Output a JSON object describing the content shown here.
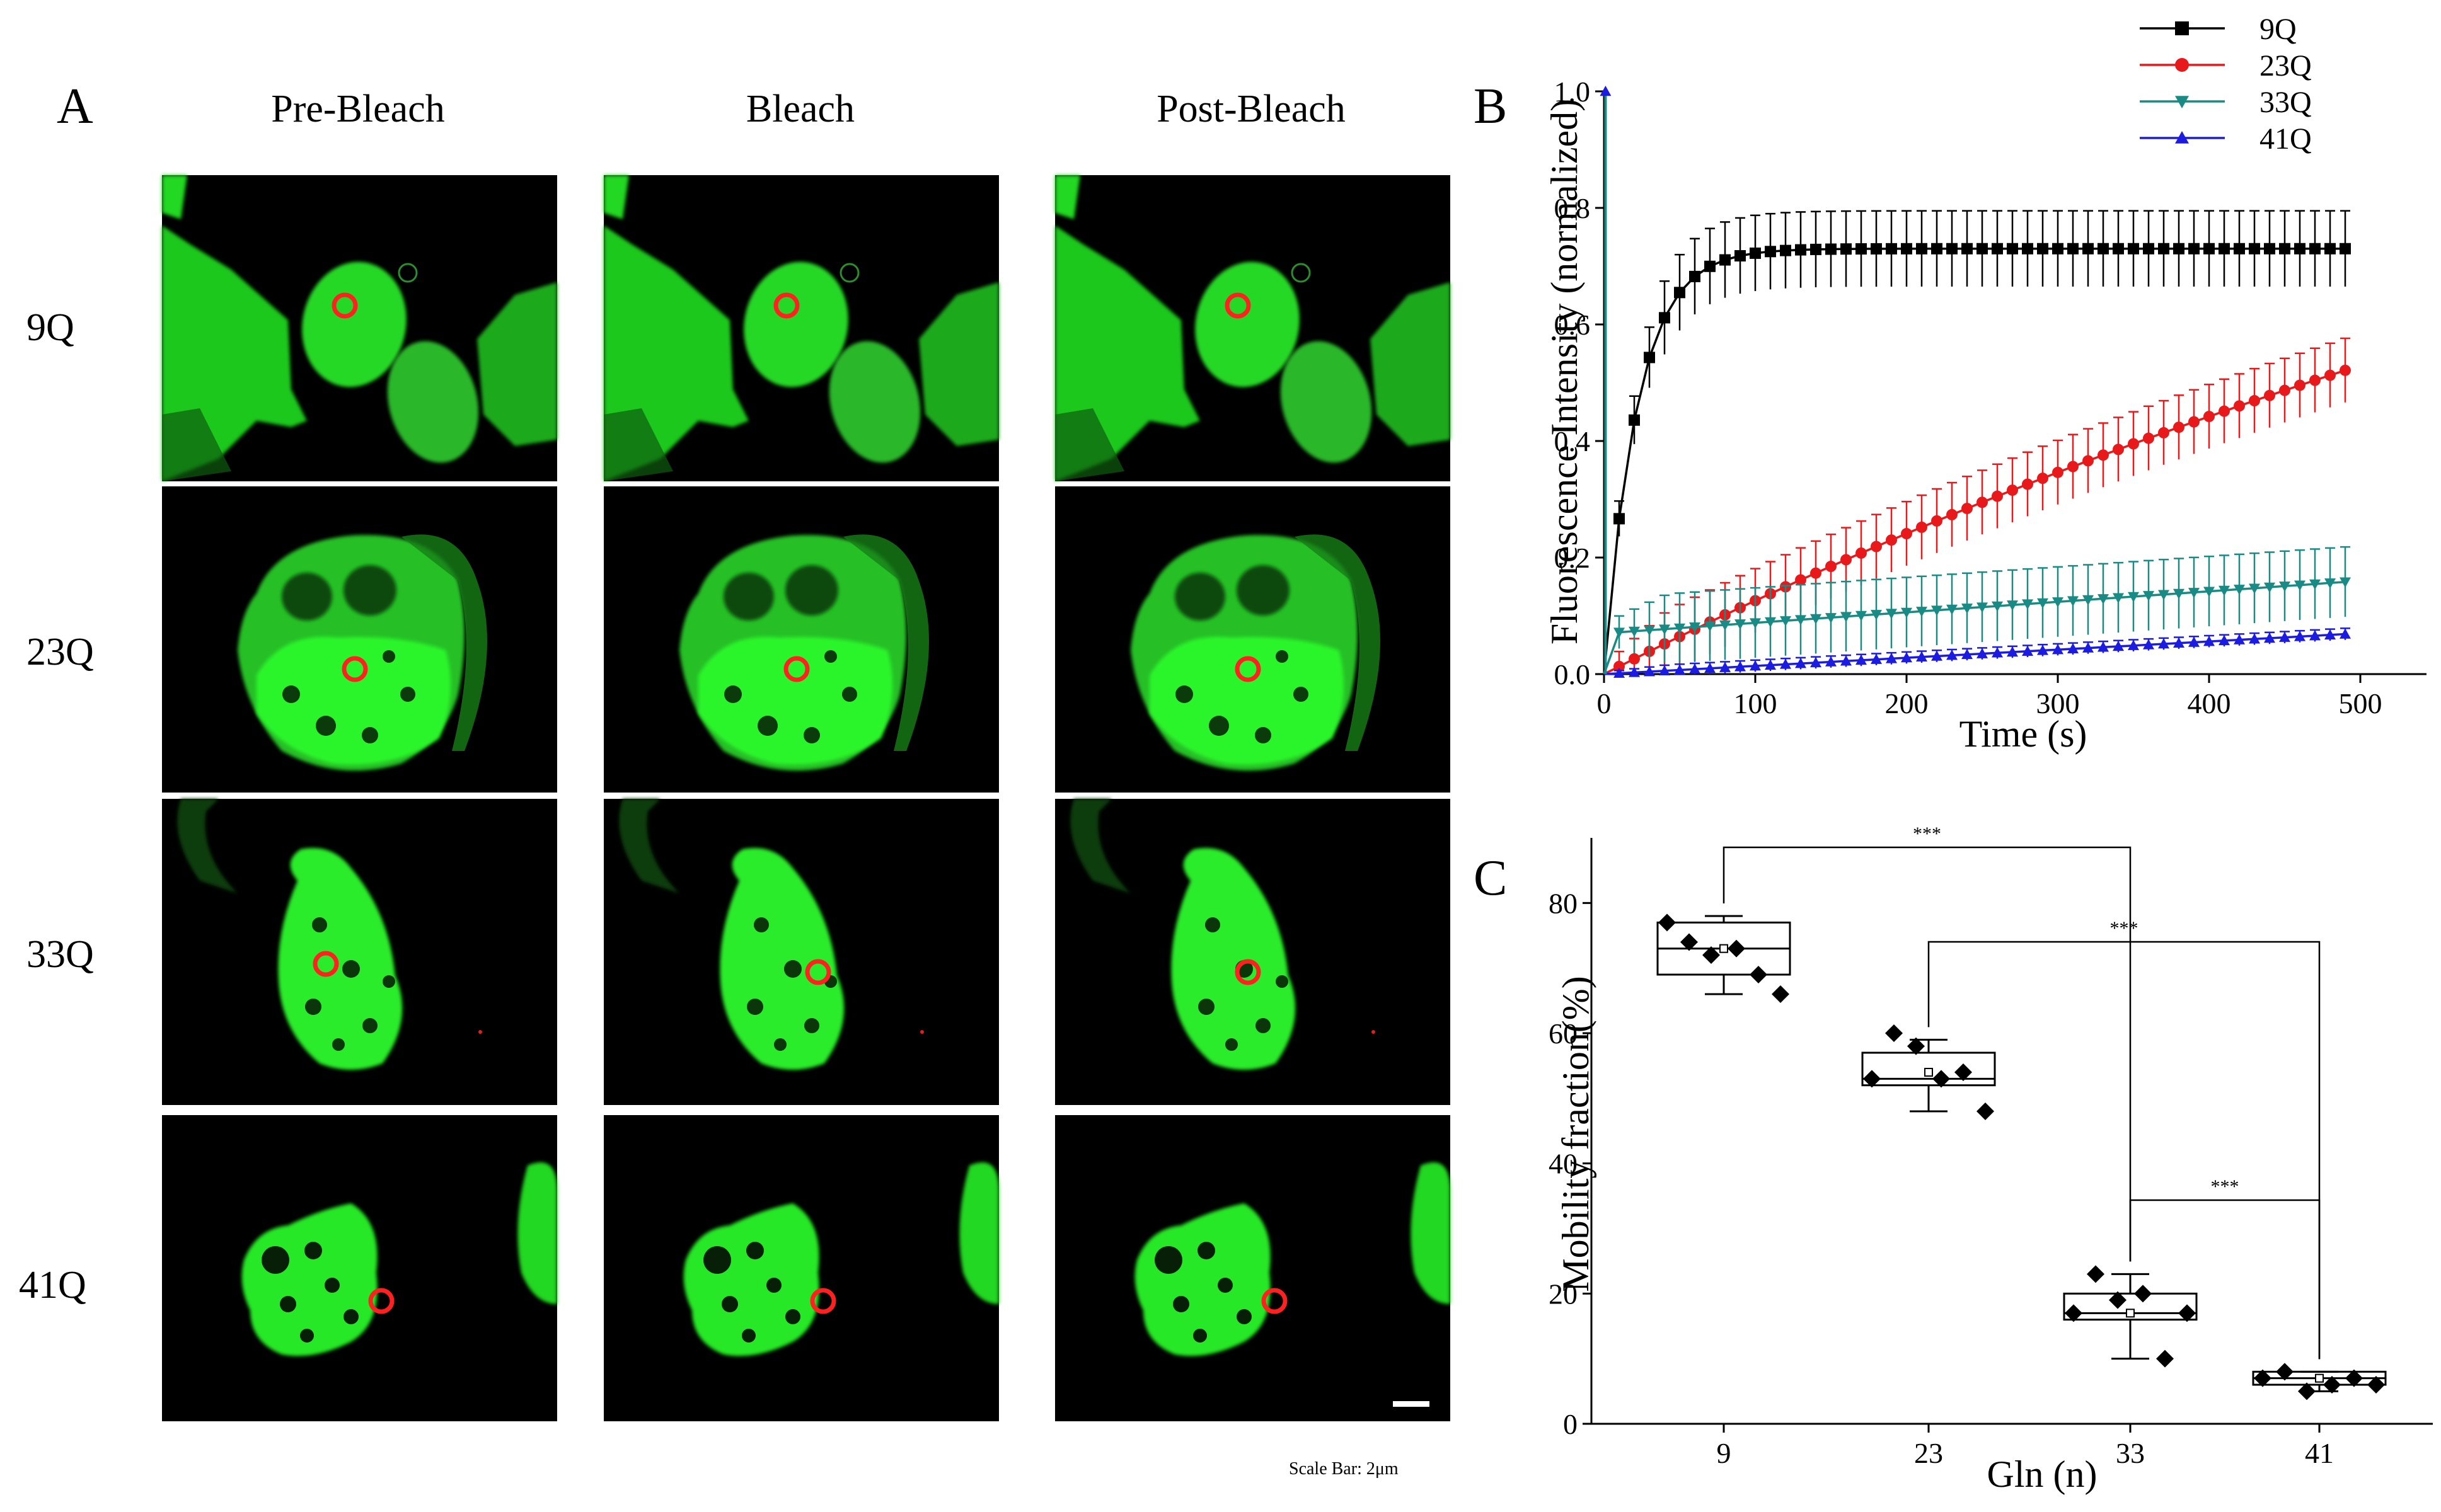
{
  "panel_a": {
    "letter": "A",
    "columns": [
      "Pre-Bleach",
      "Bleach",
      "Post-Bleach"
    ],
    "rows": [
      "9Q",
      "23Q",
      "33Q",
      "41Q"
    ],
    "scale_label": "Scale Bar:  2μm",
    "colors": {
      "fluorescence": "#22dd22",
      "bleach_roi": "#ff2020",
      "background": "#000000"
    }
  },
  "panel_b": {
    "letter": "B",
    "xlabel": "Time (s)",
    "ylabel": "Fluorescence Intensity (normalized)",
    "xticks": [
      "0",
      "100",
      "200",
      "300",
      "400",
      "500"
    ],
    "yticks": [
      "0.0",
      "0.2",
      "0.4",
      "0.6",
      "0.8",
      "1.0"
    ],
    "legend": [
      "9Q",
      "23Q",
      "33Q",
      "41Q"
    ]
  },
  "panel_c": {
    "letter": "C",
    "xlabel": "Gln (n)",
    "ylabel": "Mobility fraction(%)",
    "xticks": [
      "9",
      "23",
      "33",
      "41"
    ],
    "yticks": [
      "0",
      "20",
      "40",
      "60",
      "80"
    ],
    "significance": [
      "***",
      "***",
      "***"
    ]
  },
  "chart_data": [
    {
      "type": "line",
      "panel": "B",
      "xlabel": "Time (s)",
      "ylabel": "Fluorescence Intensity (normalized)",
      "xlim": [
        0,
        540
      ],
      "ylim": [
        0,
        1.0
      ],
      "legend": "top-right",
      "series": [
        {
          "name": "9Q",
          "color": "#000000",
          "marker": "square",
          "curve": {
            "kind": "exp",
            "plateau": 0.73,
            "tau": 22,
            "error": 0.065
          }
        },
        {
          "name": "23Q",
          "color": "#e8191a",
          "marker": "circle",
          "curve": {
            "kind": "exp",
            "plateau": 1.45,
            "tau": 1100,
            "error": 0.055
          }
        },
        {
          "name": "33Q",
          "color": "#1a8a84",
          "marker": "triangle-down",
          "curve": {
            "kind": "linear",
            "start": 0.07,
            "slope": 0.00018,
            "error": 0.06
          }
        },
        {
          "name": "41Q",
          "color": "#1c1ce0",
          "marker": "triangle-up",
          "curve": {
            "kind": "linear",
            "start": 0.0,
            "slope": 0.00014,
            "error": 0.01
          }
        }
      ]
    },
    {
      "type": "box",
      "panel": "C",
      "xlabel": "Gln (n)",
      "ylabel": "Mobility fraction(%)",
      "ylim": [
        0,
        90
      ],
      "categories": [
        "9",
        "23",
        "33",
        "41"
      ],
      "boxes": [
        {
          "q1": 69,
          "median": 73,
          "q3": 77,
          "mean": 73,
          "whisker_low": 66,
          "whisker_high": 78,
          "points": [
            77,
            74,
            72,
            73,
            69,
            66
          ]
        },
        {
          "q1": 52,
          "median": 53,
          "q3": 57,
          "mean": 54,
          "whisker_low": 48,
          "whisker_high": 59,
          "points": [
            53,
            60,
            58,
            53,
            54,
            48
          ]
        },
        {
          "q1": 16,
          "median": 17,
          "q3": 20,
          "mean": 17,
          "whisker_low": 10,
          "whisker_high": 23,
          "points": [
            17,
            23,
            19,
            20,
            10,
            17
          ]
        },
        {
          "q1": 6,
          "median": 7,
          "q3": 8,
          "mean": 7,
          "whisker_low": 5,
          "whisker_high": 8,
          "points": [
            7,
            8,
            5,
            6,
            7,
            6
          ]
        }
      ],
      "significance": [
        {
          "from": "9",
          "to": "33",
          "label": "***"
        },
        {
          "from": "23",
          "to": "41",
          "label": "***"
        },
        {
          "from": "33",
          "to": "41",
          "label": "***"
        }
      ]
    }
  ]
}
